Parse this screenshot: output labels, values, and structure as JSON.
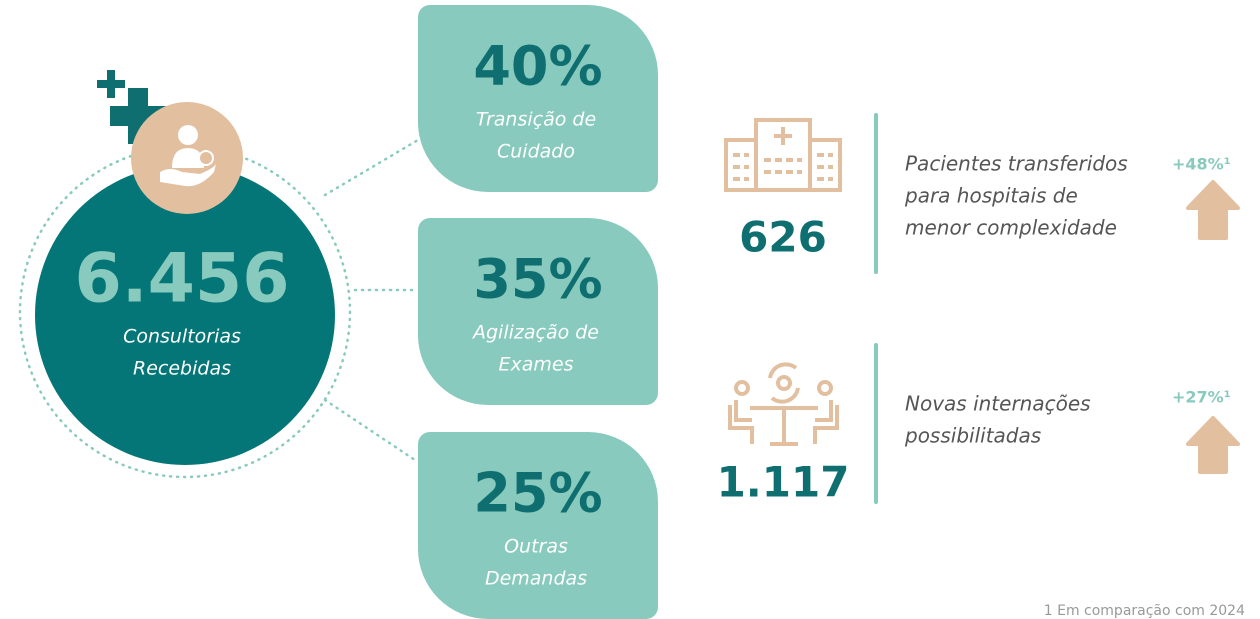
{
  "center": {
    "value": "6.456",
    "label_lines": [
      "Consultorias",
      "Recebidas"
    ]
  },
  "breakdown": [
    {
      "percent": "40%",
      "label_lines": [
        "Transição de",
        "Cuidado"
      ]
    },
    {
      "percent": "35%",
      "label_lines": [
        "Agilização de",
        "Exames"
      ]
    },
    {
      "percent": "25%",
      "label_lines": [
        "Outras",
        "Demandas"
      ]
    }
  ],
  "outcomes": [
    {
      "value": "626",
      "description_lines": [
        "Pacientes transferidos",
        "para hospitais de",
        "menor complexidade"
      ],
      "change": "+48%¹"
    },
    {
      "value": "1.117",
      "description_lines": [
        "Novas internações",
        "possibilitadas"
      ],
      "change": "+27%¹"
    }
  ],
  "footnote": "1 Em comparação com 2024"
}
